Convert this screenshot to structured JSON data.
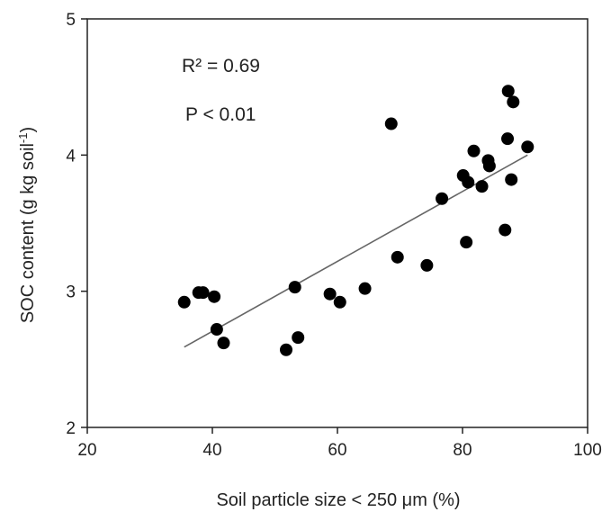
{
  "chart_data": {
    "type": "scatter",
    "xlabel": "Soil particle size < 250 μm (%)",
    "ylabel_main": "SOC content  (g kg soil",
    "ylabel_sup": "-1",
    "ylabel_close": ")",
    "xlim": [
      20,
      100
    ],
    "ylim": [
      2,
      5
    ],
    "xticks": [
      20,
      40,
      60,
      80,
      100
    ],
    "yticks": [
      2,
      3,
      4,
      5
    ],
    "grid": false,
    "annotations": [
      "R² = 0.69",
      "P < 0.01"
    ],
    "points": [
      {
        "x": 35.5,
        "y": 2.92
      },
      {
        "x": 37.8,
        "y": 2.99
      },
      {
        "x": 38.5,
        "y": 2.99
      },
      {
        "x": 40.3,
        "y": 2.96
      },
      {
        "x": 40.7,
        "y": 2.72
      },
      {
        "x": 41.8,
        "y": 2.62
      },
      {
        "x": 51.8,
        "y": 2.57
      },
      {
        "x": 53.2,
        "y": 3.03
      },
      {
        "x": 53.7,
        "y": 2.66
      },
      {
        "x": 58.8,
        "y": 2.98
      },
      {
        "x": 60.4,
        "y": 2.92
      },
      {
        "x": 64.4,
        "y": 3.02
      },
      {
        "x": 68.6,
        "y": 4.23
      },
      {
        "x": 69.6,
        "y": 3.25
      },
      {
        "x": 74.3,
        "y": 3.19
      },
      {
        "x": 76.7,
        "y": 3.68
      },
      {
        "x": 80.1,
        "y": 3.85
      },
      {
        "x": 80.6,
        "y": 3.36
      },
      {
        "x": 80.9,
        "y": 3.8
      },
      {
        "x": 81.8,
        "y": 4.03
      },
      {
        "x": 83.1,
        "y": 3.77
      },
      {
        "x": 84.1,
        "y": 3.96
      },
      {
        "x": 84.3,
        "y": 3.92
      },
      {
        "x": 86.8,
        "y": 3.45
      },
      {
        "x": 87.2,
        "y": 4.12
      },
      {
        "x": 87.3,
        "y": 4.47
      },
      {
        "x": 87.8,
        "y": 3.82
      },
      {
        "x": 88.1,
        "y": 4.39
      },
      {
        "x": 90.4,
        "y": 4.06
      }
    ],
    "trendline": {
      "x": [
        35.5,
        90.4
      ],
      "y": [
        2.59,
        4.0
      ]
    },
    "colors": {
      "points": "#000000",
      "trendline": "#666666",
      "axis": "#222222"
    }
  }
}
